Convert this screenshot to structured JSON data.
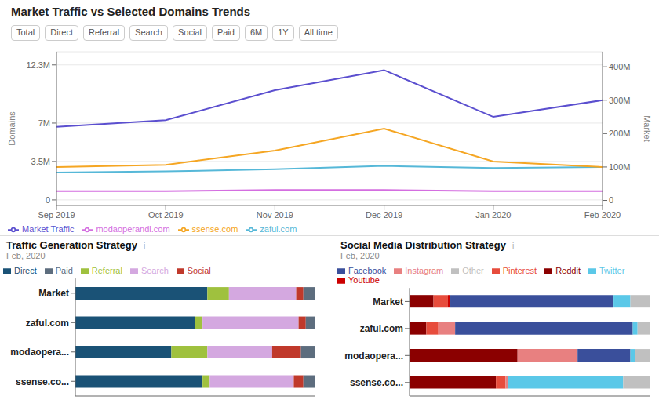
{
  "chart_data": [
    {
      "type": "line",
      "title": "Market Traffic vs Selected Domains Trends",
      "annotations": [
        "Total",
        "Direct",
        "Referral",
        "Search",
        "Social",
        "Paid",
        "6M",
        "1Y",
        "All time"
      ],
      "categories": [
        "Sep 2019",
        "Oct 2019",
        "Nov 2019",
        "Dec 2019",
        "Jan 2020",
        "Feb 2020"
      ],
      "series": [
        {
          "name": "Market Traffic",
          "color": "#5b4fcf",
          "axis": "y2",
          "values": [
            220,
            240,
            330,
            390,
            250,
            300
          ]
        },
        {
          "name": "zaful.com",
          "color": "#56b8d8",
          "values": [
            2.5,
            2.6,
            2.8,
            3.1,
            2.9,
            3.0
          ]
        },
        {
          "name": "modaoperandi.com",
          "color": "#d46ee0",
          "values": [
            0.8,
            0.8,
            0.9,
            0.9,
            0.8,
            0.8
          ]
        },
        {
          "name": "ssense.com",
          "color": "#f5a623",
          "values": [
            3.0,
            3.2,
            4.5,
            6.5,
            3.5,
            3.0
          ]
        }
      ],
      "y_label": "Domains",
      "y2_label": "Market",
      "ylim": [
        -0.5,
        13.5
      ],
      "yticks": [
        0,
        {
          "value": 3.5,
          "label": "3.5M"
        },
        {
          "value": 7,
          "label": "7M"
        },
        {
          "value": 12.3,
          "label": "12.3M"
        }
      ],
      "y2lim": [
        -15,
        445
      ],
      "y2ticks": [
        0,
        {
          "value": 100,
          "label": "100M"
        },
        {
          "value": 200,
          "label": "200M"
        },
        {
          "value": 300,
          "label": "300M"
        },
        {
          "value": 400,
          "label": "400M"
        }
      ],
      "grid": true,
      "legend": "bottom"
    },
    {
      "type": "bar",
      "orientation": "horizontal",
      "stacked": true,
      "title": "Traffic Generation Strategy",
      "subtitle": "Feb, 2020",
      "annotations": [
        "i"
      ],
      "categories": [
        "Market",
        "zaful.com",
        "modaopera...",
        "ssense.co..."
      ],
      "series": [
        {
          "name": "Direct",
          "color": "#1a5276",
          "values": [
            0.55,
            0.5,
            0.4,
            0.53
          ]
        },
        {
          "name": "Referral",
          "color": "#9fc13e",
          "values": [
            0.09,
            0.03,
            0.15,
            0.03
          ]
        },
        {
          "name": "Search",
          "color": "#d4a8e0",
          "values": [
            0.28,
            0.4,
            0.27,
            0.35
          ]
        },
        {
          "name": "Social",
          "color": "#c0392b",
          "values": [
            0.03,
            0.03,
            0.12,
            0.04
          ]
        },
        {
          "name": "Paid",
          "color": "#5d6d7e",
          "values": [
            0.05,
            0.04,
            0.06,
            0.05
          ]
        }
      ],
      "xlim": [
        0,
        1
      ],
      "tick_labels": "y",
      "grid": false,
      "legend": "top"
    },
    {
      "type": "bar",
      "orientation": "horizontal",
      "stacked": true,
      "title": "Social Media Distribution Strategy",
      "subtitle": "Feb, 2020",
      "annotations": [
        "i"
      ],
      "categories": [
        "Market",
        "zaful.com",
        "modaopera...",
        "ssense.co..."
      ],
      "series": [
        {
          "name": "Reddit",
          "color": "#8b0000",
          "values": [
            0.1,
            0.07,
            0.45,
            0.36
          ]
        },
        {
          "name": "Pinterest",
          "color": "#e74c3c",
          "values": [
            0.06,
            0.05,
            0.0,
            0.04
          ]
        },
        {
          "name": "Instagram",
          "color": "#e88080",
          "values": [
            0.0,
            0.07,
            0.25,
            0.01
          ]
        },
        {
          "name": "Youtube",
          "color": "#cc0000",
          "values": [
            0.01,
            0.0,
            0.0,
            0.0
          ]
        },
        {
          "name": "Facebook",
          "color": "#3a4f9b",
          "values": [
            0.68,
            0.74,
            0.22,
            0.0
          ]
        },
        {
          "name": "Twitter",
          "color": "#5bc8e8",
          "values": [
            0.07,
            0.02,
            0.02,
            0.48
          ]
        },
        {
          "name": "Other",
          "color": "#c0c0c0",
          "values": [
            0.08,
            0.05,
            0.06,
            0.11
          ]
        }
      ],
      "xlim": [
        0,
        1
      ],
      "tick_labels": "y",
      "grid": false,
      "legend": "top"
    }
  ]
}
